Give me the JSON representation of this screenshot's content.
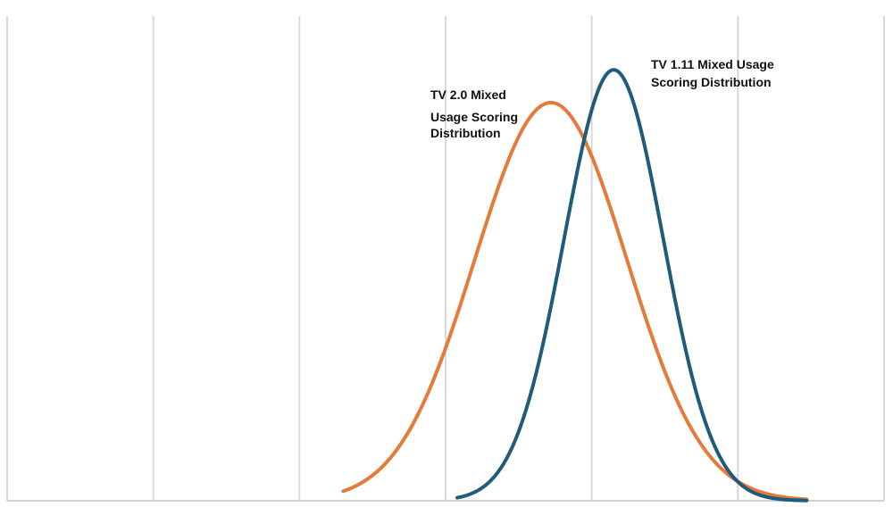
{
  "chart_data": {
    "type": "line",
    "title": "",
    "xlabel": "",
    "ylabel": "",
    "grid": "vertical gridlines",
    "xlim": [
      0,
      6
    ],
    "ylim": [
      0,
      1.05
    ],
    "series": [
      {
        "name": "TV 2.0 Mixed Usage Scoring Distribution",
        "color": "#E57B3A",
        "mean": 3.72,
        "sd": 0.52,
        "peak": 0.85,
        "x": [
          2.3,
          2.5,
          2.7,
          2.9,
          3.1,
          3.3,
          3.5,
          3.72,
          3.9,
          4.1,
          4.3,
          4.5,
          4.7,
          4.9,
          5.1,
          5.3,
          5.47
        ],
        "values": [
          0.02,
          0.04,
          0.1,
          0.21,
          0.37,
          0.59,
          0.78,
          0.85,
          0.8,
          0.65,
          0.45,
          0.27,
          0.14,
          0.06,
          0.02,
          0.01,
          0.0
        ],
        "labels": [
          "TV 2.0 Mixed",
          "Usage Scoring",
          "Distribution"
        ]
      },
      {
        "name": "TV 1.11 Mixed Usage Scoring Distribution",
        "color": "#1F5C7C",
        "mean": 4.15,
        "sd": 0.34,
        "peak": 0.92,
        "x": [
          3.08,
          3.3,
          3.5,
          3.7,
          3.9,
          4.0,
          4.15,
          4.3,
          4.5,
          4.7,
          4.9,
          5.1,
          5.3,
          5.47
        ],
        "values": [
          0.01,
          0.04,
          0.15,
          0.38,
          0.7,
          0.84,
          0.92,
          0.84,
          0.55,
          0.25,
          0.08,
          0.02,
          0.005,
          0.001
        ],
        "labels": [
          "TV 1.11 Mixed Usage",
          "Scoring Distribution"
        ]
      }
    ]
  }
}
